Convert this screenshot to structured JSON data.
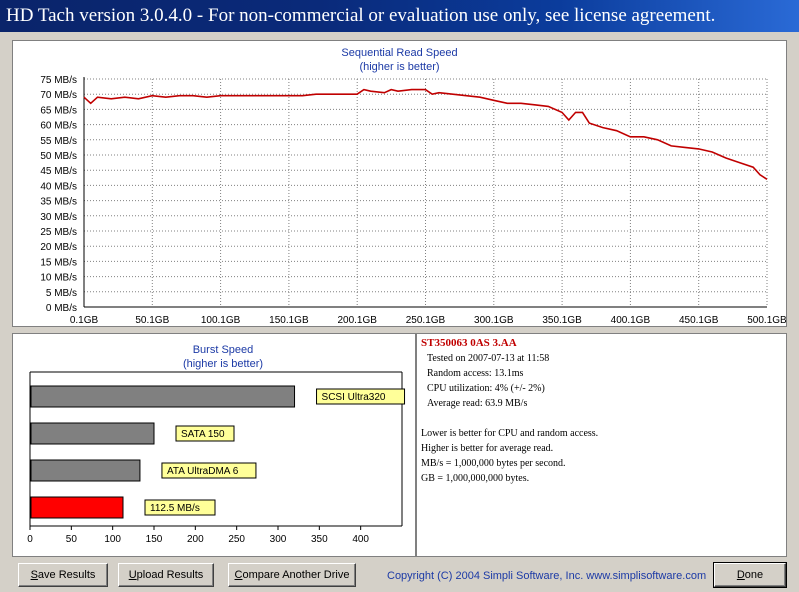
{
  "window": {
    "title": "HD Tach version 3.0.4.0  - For non-commercial or evaluation use only, see license agreement."
  },
  "sequential": {
    "title_line1": "Sequential Read Speed",
    "title_line2": "(higher is better)"
  },
  "burst": {
    "title_line1": "Burst Speed",
    "title_line2": "(higher is better)"
  },
  "info": {
    "drive_name": "ST350063 0AS 3.AA",
    "tested_on": "Tested on 2007-07-13 at 11:58",
    "random_access": "Random access: 13.1ms",
    "cpu_utilization": "CPU utilization: 4% (+/- 2%)",
    "average_read": "Average read: 63.9 MB/s",
    "note1": "Lower is better for CPU and random access.",
    "note2": "Higher is better for average read.",
    "note3": "MB/s = 1,000,000 bytes per second.",
    "note4": "GB = 1,000,000,000 bytes."
  },
  "buttons": {
    "save": {
      "underline": "S",
      "rest": "ave Results"
    },
    "upload": {
      "underline": "U",
      "rest": "pload Results"
    },
    "compare": {
      "underline": "C",
      "rest": "ompare Another Drive"
    },
    "done": {
      "underline": "D",
      "rest": "one"
    }
  },
  "footer": {
    "copyright": "Copyright (C) 2004 Simpli Software, Inc. www.simplisoftware.com"
  },
  "colors": {
    "line": "#c00000",
    "grid": "#808080",
    "bar_gray": "#808080",
    "bar_current": "#ff0000",
    "label_bg": "#ffff99",
    "title_blue": "#1c3aa6"
  },
  "chart_data": [
    {
      "type": "line",
      "title": "Sequential Read Speed",
      "subtitle": "(higher is better)",
      "ylim": [
        0,
        75
      ],
      "yticks": [
        75,
        70,
        65,
        60,
        55,
        50,
        45,
        40,
        35,
        30,
        25,
        20,
        15,
        10,
        5,
        0
      ],
      "ytick_labels": [
        "75 MB/s",
        "70 MB/s",
        "65 MB/s",
        "60 MB/s",
        "55 MB/s",
        "50 MB/s",
        "45 MB/s",
        "40 MB/s",
        "35 MB/s",
        "30 MB/s",
        "25 MB/s",
        "20 MB/s",
        "15 MB/s",
        "10 MB/s",
        "5 MB/s",
        "0 MB/s"
      ],
      "xlim": [
        0.1,
        500.1
      ],
      "xtick_labels": [
        "0.1GB",
        "50.1GB",
        "100.1GB",
        "150.1GB",
        "200.1GB",
        "250.1GB",
        "300.1GB",
        "350.1GB",
        "400.1GB",
        "450.1GB",
        "500.1GB"
      ],
      "grid": true,
      "series": [
        {
          "x": [
            0.1,
            5,
            10,
            20,
            30,
            40,
            50,
            60,
            70,
            80,
            90,
            100,
            110,
            120,
            130,
            140,
            150,
            160,
            170,
            180,
            190,
            200,
            205,
            210,
            220,
            225,
            230,
            240,
            250,
            255,
            260,
            270,
            280,
            290,
            300,
            310,
            320,
            330,
            340,
            350,
            355,
            360,
            365,
            370,
            380,
            390,
            400,
            410,
            420,
            430,
            440,
            450,
            460,
            470,
            480,
            490,
            495,
            500.1
          ],
          "y": [
            69,
            67,
            69,
            68.5,
            69,
            68.5,
            69.5,
            69,
            69.5,
            69.5,
            69,
            69.5,
            69.5,
            69.5,
            69.5,
            69.5,
            69.5,
            69.5,
            70,
            70,
            70,
            70,
            71.5,
            71,
            70.5,
            71.5,
            71,
            71.5,
            71.5,
            70,
            70.5,
            70,
            69.5,
            69,
            68,
            67,
            67,
            66.5,
            66,
            64,
            61.5,
            64,
            64,
            60.5,
            59,
            58,
            56,
            56,
            55,
            53,
            52.5,
            52,
            51,
            49,
            47.5,
            46,
            43.5,
            42
          ]
        }
      ]
    },
    {
      "type": "bar",
      "orientation": "horizontal",
      "title": "Burst Speed",
      "subtitle": "(higher is better)",
      "xlim": [
        0,
        450
      ],
      "xtick_labels": [
        "0",
        "50",
        "100",
        "150",
        "200",
        "250",
        "300",
        "350",
        "400"
      ],
      "categories": [
        "SCSI Ultra320",
        "SATA 150",
        "ATA UltraDMA 6",
        "112.5 MB/s"
      ],
      "values": [
        320,
        150,
        133,
        112.5
      ]
    }
  ]
}
